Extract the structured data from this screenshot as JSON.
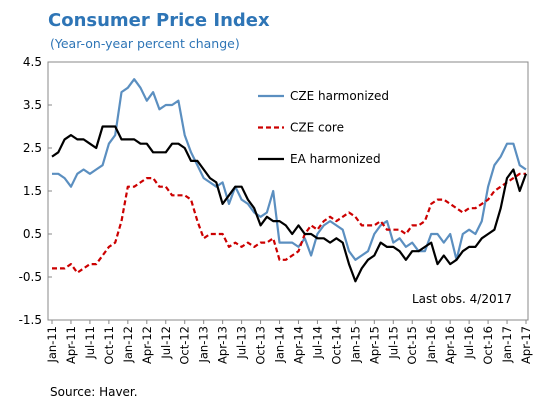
{
  "chart_data": {
    "type": "line",
    "title": "Consumer Price Index",
    "subtitle": "(Year-on-year percent change)",
    "annotation": "Last obs. 4/2017",
    "source": "Source: Haver.",
    "categories": [
      "Jan-11",
      null,
      null,
      "Apr-11",
      null,
      null,
      "Jul-11",
      null,
      null,
      "Oct-11",
      null,
      null,
      "Jan-12",
      null,
      null,
      "Apr-12",
      null,
      null,
      "Jul-12",
      null,
      null,
      "Oct-12",
      null,
      null,
      "Jan-13",
      null,
      null,
      "Apr-13",
      null,
      null,
      "Jul-13",
      null,
      null,
      "Oct-13",
      null,
      null,
      "Jan-14",
      null,
      null,
      "Apr-14",
      null,
      null,
      "Jul-14",
      null,
      null,
      "Oct-14",
      null,
      null,
      "Jan-15",
      null,
      null,
      "Apr-15",
      null,
      null,
      "Jul-15",
      null,
      null,
      "Oct-15",
      null,
      null,
      "Jan-16",
      null,
      null,
      "Apr-16",
      null,
      null,
      "Jul-16",
      null,
      null,
      "Oct-16",
      null,
      null,
      "Jan-17",
      null,
      null,
      "Apr-17"
    ],
    "series": [
      {
        "name": "CZE harmonized",
        "color": "#5b8fc0",
        "dash": false,
        "values": [
          1.9,
          1.9,
          1.8,
          1.6,
          1.9,
          2.0,
          1.9,
          2.0,
          2.1,
          2.6,
          2.8,
          3.8,
          3.9,
          4.1,
          3.9,
          3.6,
          3.8,
          3.4,
          3.5,
          3.5,
          3.6,
          2.8,
          2.4,
          2.1,
          1.8,
          1.7,
          1.6,
          1.7,
          1.2,
          1.6,
          1.3,
          1.2,
          1.0,
          0.9,
          1.0,
          1.5,
          0.3,
          0.3,
          0.3,
          0.2,
          0.4,
          0.0,
          0.5,
          0.7,
          0.8,
          0.7,
          0.6,
          0.1,
          -0.1,
          0.0,
          0.1,
          0.5,
          0.7,
          0.8,
          0.3,
          0.4,
          0.2,
          0.3,
          0.1,
          0.1,
          0.5,
          0.5,
          0.3,
          0.5,
          -0.1,
          0.5,
          0.6,
          0.5,
          0.8,
          1.6,
          2.1,
          2.3,
          2.6,
          2.6,
          2.1,
          2.0
        ]
      },
      {
        "name": "CZE core",
        "color": "#cc0000",
        "dash": true,
        "values": [
          -0.3,
          -0.3,
          -0.3,
          -0.2,
          -0.4,
          -0.3,
          -0.2,
          -0.2,
          0.0,
          0.2,
          0.3,
          0.8,
          1.6,
          1.6,
          1.7,
          1.8,
          1.8,
          1.6,
          1.6,
          1.4,
          1.4,
          1.4,
          1.3,
          0.8,
          0.4,
          0.5,
          0.5,
          0.5,
          0.2,
          0.3,
          0.2,
          0.3,
          0.2,
          0.3,
          0.3,
          0.4,
          -0.1,
          -0.1,
          0.0,
          0.1,
          0.5,
          0.7,
          0.6,
          0.8,
          0.9,
          0.8,
          0.9,
          1.0,
          0.9,
          0.7,
          0.7,
          0.7,
          0.8,
          0.6,
          0.6,
          0.6,
          0.5,
          0.7,
          0.7,
          0.8,
          1.2,
          1.3,
          1.3,
          1.2,
          1.1,
          1.0,
          1.1,
          1.1,
          1.2,
          1.3,
          1.5,
          1.6,
          1.7,
          1.8,
          1.9,
          1.9
        ]
      },
      {
        "name": "EA harmonized",
        "color": "#000000",
        "dash": false,
        "values": [
          2.3,
          2.4,
          2.7,
          2.8,
          2.7,
          2.7,
          2.6,
          2.5,
          3.0,
          3.0,
          3.0,
          2.7,
          2.7,
          2.7,
          2.6,
          2.6,
          2.4,
          2.4,
          2.4,
          2.6,
          2.6,
          2.5,
          2.2,
          2.2,
          2.0,
          1.8,
          1.7,
          1.2,
          1.4,
          1.6,
          1.6,
          1.3,
          1.1,
          0.7,
          0.9,
          0.8,
          0.8,
          0.7,
          0.5,
          0.7,
          0.5,
          0.5,
          0.4,
          0.4,
          0.3,
          0.4,
          0.3,
          -0.2,
          -0.6,
          -0.3,
          -0.1,
          0.0,
          0.3,
          0.2,
          0.2,
          0.1,
          -0.1,
          0.1,
          0.1,
          0.2,
          0.3,
          -0.2,
          0.0,
          -0.2,
          -0.1,
          0.1,
          0.2,
          0.2,
          0.4,
          0.5,
          0.6,
          1.1,
          1.8,
          2.0,
          1.5,
          1.9
        ]
      }
    ],
    "ylim": [
      -1.5,
      4.5
    ],
    "yticks": [
      4.5,
      3.5,
      2.5,
      1.5,
      0.5,
      -0.5,
      -1.5
    ],
    "grid": false,
    "legend": "top-center"
  }
}
